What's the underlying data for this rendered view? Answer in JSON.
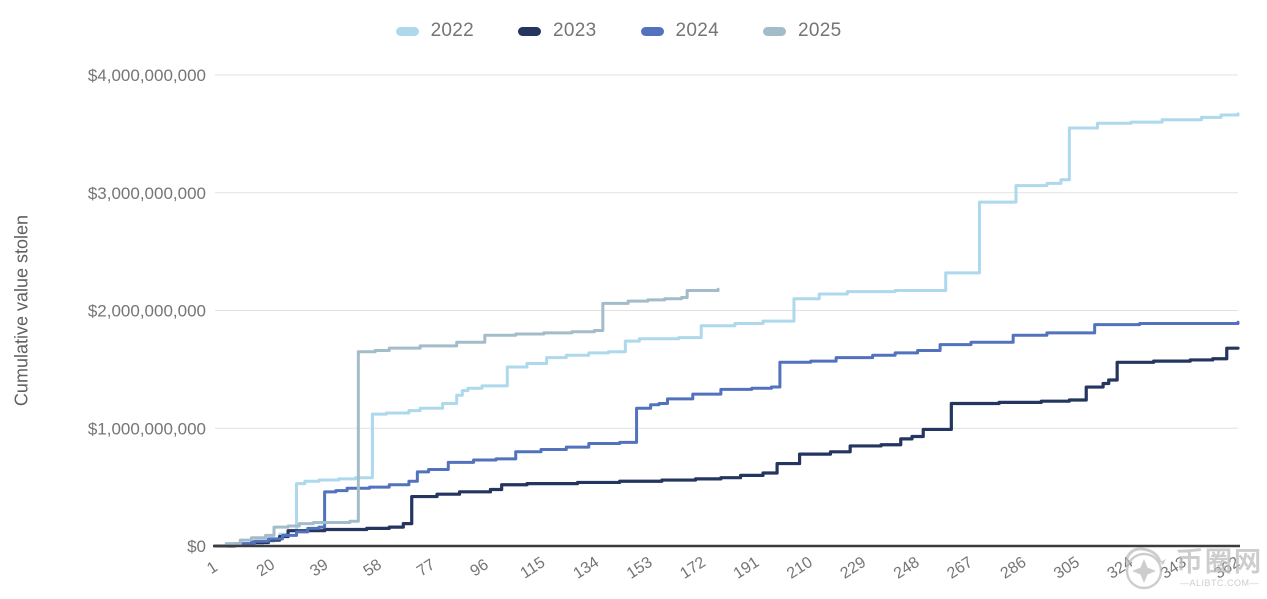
{
  "legend": {
    "items": [
      {
        "label": "2022",
        "color": "#AED8EC"
      },
      {
        "label": "2023",
        "color": "#24355F"
      },
      {
        "label": "2024",
        "color": "#5272BE"
      },
      {
        "label": "2025",
        "color": "#A3BCC9"
      }
    ]
  },
  "y_axis": {
    "title": "Cumulative value stolen",
    "ticks": [
      {
        "value": 0,
        "label": "$0"
      },
      {
        "value": 1,
        "label": "$1,000,000,000"
      },
      {
        "value": 2,
        "label": "$2,000,000,000"
      },
      {
        "value": 3,
        "label": "$3,000,000,000"
      },
      {
        "value": 4,
        "label": "$4,000,000,000"
      }
    ]
  },
  "x_axis": {
    "ticks": [
      1,
      20,
      39,
      58,
      77,
      96,
      115,
      134,
      153,
      172,
      191,
      210,
      229,
      248,
      267,
      286,
      305,
      324,
      343,
      362
    ]
  },
  "watermark": {
    "logo": "coin-dragon-logo",
    "title": "币圈网",
    "subtitle": "—ALIBTC.COM—"
  },
  "chart_data": {
    "type": "line",
    "step_interpolation": true,
    "title": "",
    "xlabel": "",
    "ylabel": "Cumulative value stolen",
    "x_unit": "day of year",
    "y_unit": "USD billions",
    "xlim": [
      1,
      365
    ],
    "ylim": [
      0,
      4
    ],
    "grid": "horizontal",
    "legend_position": "top",
    "colors": {
      "grid": "#E2E2E2",
      "baseline": "#3C3C3C",
      "tick_text": "#757575"
    },
    "series": [
      {
        "name": "2022",
        "color": "#AED8EC",
        "width": 3,
        "points": [
          [
            1,
            0
          ],
          [
            6,
            0.01
          ],
          [
            12,
            0.02
          ],
          [
            18,
            0.04
          ],
          [
            22,
            0.06
          ],
          [
            24,
            0.1
          ],
          [
            27,
            0.13
          ],
          [
            30,
            0.53
          ],
          [
            33,
            0.55
          ],
          [
            38,
            0.56
          ],
          [
            45,
            0.57
          ],
          [
            51,
            0.58
          ],
          [
            57,
            1.12
          ],
          [
            62,
            1.13
          ],
          [
            70,
            1.15
          ],
          [
            74,
            1.17
          ],
          [
            82,
            1.21
          ],
          [
            87,
            1.28
          ],
          [
            89,
            1.32
          ],
          [
            91,
            1.34
          ],
          [
            96,
            1.36
          ],
          [
            105,
            1.52
          ],
          [
            112,
            1.55
          ],
          [
            119,
            1.6
          ],
          [
            126,
            1.62
          ],
          [
            134,
            1.64
          ],
          [
            141,
            1.65
          ],
          [
            147,
            1.74
          ],
          [
            152,
            1.76
          ],
          [
            166,
            1.77
          ],
          [
            174,
            1.87
          ],
          [
            186,
            1.89
          ],
          [
            196,
            1.91
          ],
          [
            207,
            2.1
          ],
          [
            216,
            2.14
          ],
          [
            226,
            2.16
          ],
          [
            243,
            2.17
          ],
          [
            261,
            2.32
          ],
          [
            273,
            2.92
          ],
          [
            286,
            3.06
          ],
          [
            297,
            3.08
          ],
          [
            302,
            3.11
          ],
          [
            305,
            3.55
          ],
          [
            315,
            3.59
          ],
          [
            327,
            3.6
          ],
          [
            338,
            3.62
          ],
          [
            352,
            3.64
          ],
          [
            359,
            3.66
          ],
          [
            365,
            3.67
          ]
        ]
      },
      {
        "name": "2023",
        "color": "#24355F",
        "width": 3.2,
        "points": [
          [
            1,
            0
          ],
          [
            8,
            0.01
          ],
          [
            14,
            0.03
          ],
          [
            20,
            0.05
          ],
          [
            24,
            0.08
          ],
          [
            27,
            0.13
          ],
          [
            40,
            0.14
          ],
          [
            55,
            0.15
          ],
          [
            63,
            0.16
          ],
          [
            68,
            0.19
          ],
          [
            71,
            0.42
          ],
          [
            80,
            0.44
          ],
          [
            88,
            0.46
          ],
          [
            99,
            0.48
          ],
          [
            103,
            0.52
          ],
          [
            112,
            0.53
          ],
          [
            130,
            0.54
          ],
          [
            145,
            0.55
          ],
          [
            160,
            0.56
          ],
          [
            172,
            0.57
          ],
          [
            181,
            0.58
          ],
          [
            188,
            0.6
          ],
          [
            196,
            0.62
          ],
          [
            201,
            0.7
          ],
          [
            209,
            0.78
          ],
          [
            220,
            0.8
          ],
          [
            227,
            0.85
          ],
          [
            238,
            0.86
          ],
          [
            245,
            0.91
          ],
          [
            249,
            0.93
          ],
          [
            253,
            0.99
          ],
          [
            263,
            1.21
          ],
          [
            280,
            1.22
          ],
          [
            295,
            1.23
          ],
          [
            305,
            1.24
          ],
          [
            311,
            1.35
          ],
          [
            317,
            1.38
          ],
          [
            319,
            1.41
          ],
          [
            322,
            1.56
          ],
          [
            335,
            1.57
          ],
          [
            348,
            1.58
          ],
          [
            356,
            1.59
          ],
          [
            361,
            1.68
          ],
          [
            365,
            1.68
          ]
        ]
      },
      {
        "name": "2024",
        "color": "#5272BE",
        "width": 3,
        "points": [
          [
            1,
            0
          ],
          [
            8,
            0.02
          ],
          [
            15,
            0.04
          ],
          [
            20,
            0.06
          ],
          [
            25,
            0.09
          ],
          [
            30,
            0.12
          ],
          [
            34,
            0.15
          ],
          [
            38,
            0.16
          ],
          [
            40,
            0.46
          ],
          [
            44,
            0.47
          ],
          [
            48,
            0.49
          ],
          [
            56,
            0.5
          ],
          [
            63,
            0.52
          ],
          [
            70,
            0.55
          ],
          [
            73,
            0.63
          ],
          [
            77,
            0.65
          ],
          [
            84,
            0.71
          ],
          [
            93,
            0.73
          ],
          [
            101,
            0.74
          ],
          [
            108,
            0.8
          ],
          [
            117,
            0.82
          ],
          [
            126,
            0.84
          ],
          [
            134,
            0.87
          ],
          [
            145,
            0.88
          ],
          [
            151,
            1.17
          ],
          [
            156,
            1.2
          ],
          [
            159,
            1.21
          ],
          [
            162,
            1.25
          ],
          [
            171,
            1.29
          ],
          [
            181,
            1.33
          ],
          [
            192,
            1.34
          ],
          [
            199,
            1.35
          ],
          [
            202,
            1.56
          ],
          [
            213,
            1.57
          ],
          [
            222,
            1.6
          ],
          [
            235,
            1.62
          ],
          [
            243,
            1.64
          ],
          [
            251,
            1.66
          ],
          [
            259,
            1.71
          ],
          [
            270,
            1.73
          ],
          [
            285,
            1.79
          ],
          [
            297,
            1.81
          ],
          [
            314,
            1.88
          ],
          [
            330,
            1.89
          ],
          [
            347,
            1.89
          ],
          [
            365,
            1.9
          ]
        ]
      },
      {
        "name": "2025",
        "color": "#A3BCC9",
        "width": 3,
        "points": [
          [
            1,
            0
          ],
          [
            5,
            0.02
          ],
          [
            10,
            0.05
          ],
          [
            14,
            0.07
          ],
          [
            19,
            0.09
          ],
          [
            22,
            0.16
          ],
          [
            27,
            0.17
          ],
          [
            31,
            0.19
          ],
          [
            36,
            0.2
          ],
          [
            49,
            0.21
          ],
          [
            52,
            1.65
          ],
          [
            58,
            1.66
          ],
          [
            63,
            1.68
          ],
          [
            74,
            1.7
          ],
          [
            87,
            1.73
          ],
          [
            97,
            1.79
          ],
          [
            108,
            1.8
          ],
          [
            118,
            1.81
          ],
          [
            128,
            1.82
          ],
          [
            136,
            1.83
          ],
          [
            139,
            2.06
          ],
          [
            148,
            2.08
          ],
          [
            155,
            2.09
          ],
          [
            161,
            2.1
          ],
          [
            167,
            2.11
          ],
          [
            169,
            2.17
          ],
          [
            176,
            2.17
          ],
          [
            180,
            2.18
          ]
        ]
      }
    ]
  }
}
